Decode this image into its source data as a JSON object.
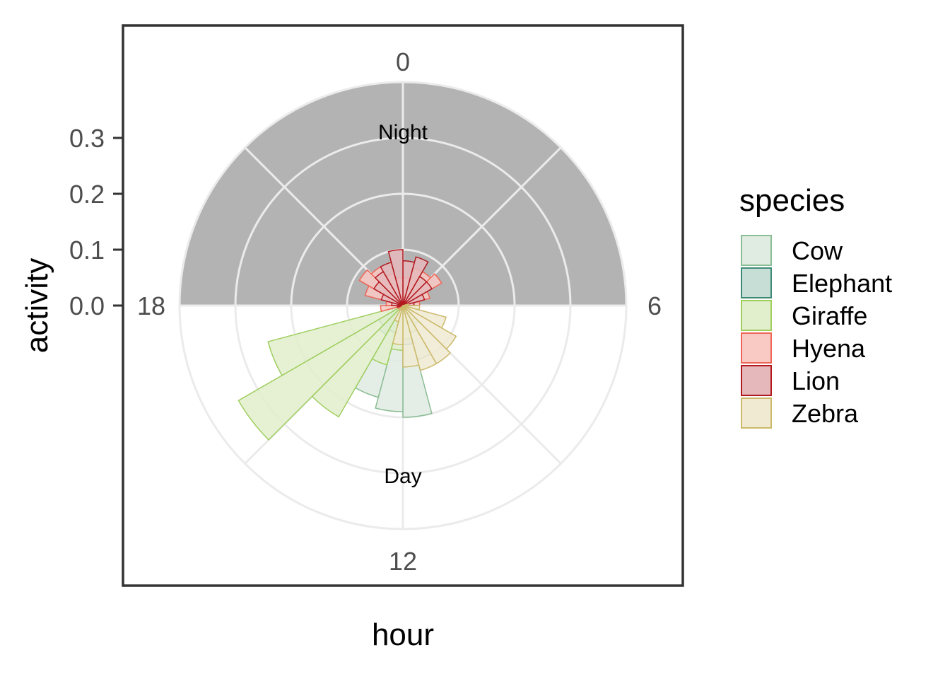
{
  "chart_data": {
    "type": "polar-bar",
    "xlabel": "hour",
    "ylabel": "activity",
    "theta_ticks": [
      "0",
      "6",
      "12",
      "18"
    ],
    "r_ticks": [
      "0.0",
      "0.1",
      "0.2",
      "0.3"
    ],
    "r_tick_values": [
      0.0,
      0.1,
      0.2,
      0.3
    ],
    "r_max": 0.4,
    "hours_per_bin": 1,
    "bands": [
      {
        "label": "Night",
        "start_hour": 18,
        "end_hour": 30,
        "value": 0.4,
        "color": "#b3b3b3"
      },
      {
        "label": "Day",
        "start_hour": 6,
        "end_hour": 18,
        "value": 0.0,
        "color": "#ffffff"
      }
    ],
    "legend": {
      "title": "species",
      "items": [
        {
          "label": "Cow",
          "fill": "#e0ebe2",
          "stroke": "#8bbd96"
        },
        {
          "label": "Elephant",
          "fill": "#c6ded6",
          "stroke": "#3d8a76"
        },
        {
          "label": "Giraffe",
          "fill": "#e2efcd",
          "stroke": "#9fce5f"
        },
        {
          "label": "Hyena",
          "fill": "#f9c9c4",
          "stroke": "#ee6556"
        },
        {
          "label": "Lion",
          "fill": "#e5b8bb",
          "stroke": "#b2181f"
        },
        {
          "label": "Zebra",
          "fill": "#f0ead2",
          "stroke": "#ccb96a"
        }
      ]
    },
    "series": [
      {
        "name": "Cow",
        "hours": [
          0,
          1,
          2,
          3,
          4,
          5,
          6,
          7,
          8,
          9,
          10,
          11,
          12,
          13,
          14,
          15,
          16,
          17,
          18,
          19,
          20,
          21,
          22,
          23
        ],
        "values": [
          0,
          0,
          0,
          0,
          0,
          0,
          0,
          0,
          0.01,
          0.04,
          0.1,
          0.2,
          0.19,
          0.17,
          0.03,
          0.01,
          0,
          0,
          0,
          0,
          0,
          0,
          0,
          0
        ]
      },
      {
        "name": "Elephant",
        "hours": [
          0,
          1,
          2,
          3,
          4,
          5,
          6,
          7,
          8,
          9,
          10,
          11,
          12,
          13,
          14,
          15,
          16,
          17,
          18,
          19,
          20,
          21,
          22,
          23
        ],
        "values": [
          0,
          0,
          0,
          0,
          0,
          0,
          0,
          0.01,
          0.02,
          0.03,
          0.05,
          0.07,
          0.06,
          0.05,
          0.06,
          0.05,
          0.02,
          0,
          0,
          0,
          0,
          0,
          0,
          0
        ]
      },
      {
        "name": "Giraffe",
        "hours": [
          0,
          1,
          2,
          3,
          4,
          5,
          6,
          7,
          8,
          9,
          10,
          11,
          12,
          13,
          14,
          15,
          16,
          17,
          18,
          19,
          20,
          21,
          22,
          23
        ],
        "values": [
          0,
          0,
          0,
          0,
          0,
          0,
          0,
          0.01,
          0.02,
          0.03,
          0.05,
          0.06,
          0.08,
          0.11,
          0.23,
          0.34,
          0.25,
          0.03,
          0.01,
          0,
          0,
          0,
          0,
          0
        ]
      },
      {
        "name": "Hyena",
        "hours": [
          0,
          1,
          2,
          3,
          4,
          5,
          6,
          7,
          8,
          9,
          10,
          11,
          12,
          13,
          14,
          15,
          16,
          17,
          18,
          19,
          20,
          21,
          22,
          23
        ],
        "values": [
          0.05,
          0.07,
          0.07,
          0.08,
          0.05,
          0.03,
          0.01,
          0,
          0,
          0,
          0,
          0,
          0,
          0,
          0,
          0,
          0.01,
          0.04,
          0.03,
          0.07,
          0.09,
          0.08,
          0.06,
          0.05
        ]
      },
      {
        "name": "Lion",
        "hours": [
          0,
          1,
          2,
          3,
          4,
          5,
          6,
          7,
          8,
          9,
          10,
          11,
          12,
          13,
          14,
          15,
          16,
          17,
          18,
          19,
          20,
          21,
          22,
          23
        ],
        "values": [
          0.08,
          0.09,
          0.06,
          0.06,
          0.04,
          0.02,
          0.01,
          0,
          0,
          0,
          0,
          0,
          0,
          0,
          0,
          0,
          0,
          0.01,
          0.02,
          0.04,
          0.06,
          0.07,
          0.08,
          0.1
        ]
      },
      {
        "name": "Zebra",
        "hours": [
          0,
          1,
          2,
          3,
          4,
          5,
          6,
          7,
          8,
          9,
          10,
          11,
          12,
          13,
          14,
          15,
          16,
          17,
          18,
          19,
          20,
          21,
          22,
          23
        ],
        "values": [
          0,
          0,
          0,
          0,
          0,
          0.01,
          0.03,
          0.08,
          0.11,
          0.12,
          0.12,
          0.11,
          0.07,
          0.03,
          0.01,
          0,
          0,
          0,
          0,
          0,
          0,
          0,
          0,
          0
        ]
      }
    ]
  }
}
